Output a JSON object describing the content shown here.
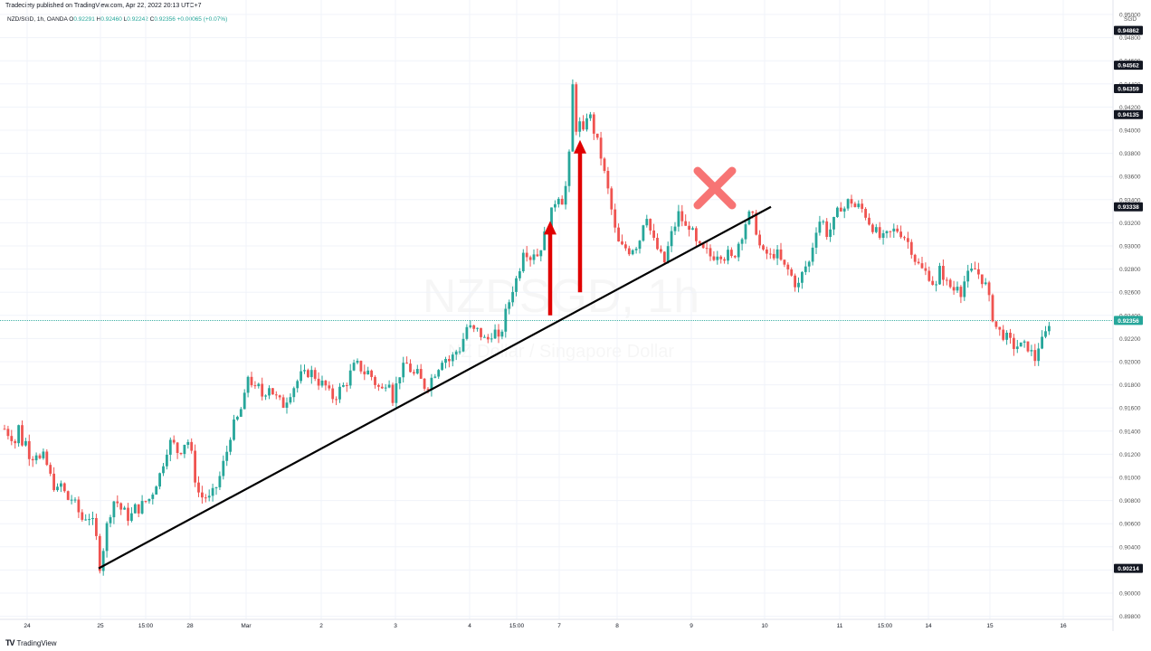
{
  "header": {
    "published": "Tradeciety published on TradingView.com, Apr 22, 2022 20:13 UTC+7",
    "symbol_line": "NZD/SGD, 1h, OANDA",
    "o_label": "O",
    "o_value": "0.92291",
    "h_label": "H",
    "h_value": "0.92460",
    "l_label": "L",
    "l_value": "0.92242",
    "c_label": "C",
    "c_value": "0.92356",
    "change": "+0.00065 (+0.07%)",
    "currency": "SGD"
  },
  "watermark": {
    "symbol": "NZDSGD, 1h",
    "name": "NZ Dollar / Singapore Dollar"
  },
  "footer": {
    "brand": "TradingView",
    "logo": "tradingview-logo-icon"
  },
  "colors": {
    "up": "#26a69a",
    "down": "#ef5350",
    "trendline": "#000000",
    "arrow": "#e00000",
    "cross": "#f77474",
    "price_line": "#26a69a"
  },
  "chart_data": {
    "type": "candlestick",
    "symbol": "NZD/SGD",
    "interval": "1h",
    "ylim": [
      0.898,
      0.95
    ],
    "y_ticks": [
      "0.95000",
      "0.94800",
      "0.94600",
      "0.94400",
      "0.94200",
      "0.94000",
      "0.93800",
      "0.93600",
      "0.93400",
      "0.93200",
      "0.93000",
      "0.92800",
      "0.92600",
      "0.92400",
      "0.92200",
      "0.92000",
      "0.91800",
      "0.91600",
      "0.91400",
      "0.91200",
      "0.91000",
      "0.90800",
      "0.90600",
      "0.90400",
      "0.90200",
      "0.90000",
      "0.89800"
    ],
    "x_ticks": [
      "24",
      "25",
      "15:00",
      "28",
      "Mar",
      "2",
      "3",
      "4",
      "15:00",
      "7",
      "8",
      "9",
      "10",
      "11",
      "15:00",
      "14",
      "15",
      "16"
    ],
    "price_labels": [
      {
        "value": "0.94862"
      },
      {
        "value": "0.94562"
      },
      {
        "value": "0.94359"
      },
      {
        "value": "0.94135"
      },
      {
        "value": "0.93338"
      },
      {
        "value": "0.90214"
      },
      {
        "value": "0.92356",
        "current": true
      }
    ],
    "close_path": [
      [
        0,
        0.9142
      ],
      [
        4,
        0.9138
      ],
      [
        8,
        0.9135
      ],
      [
        12,
        0.913
      ],
      [
        14,
        0.9148
      ],
      [
        17,
        0.914
      ],
      [
        20,
        0.9128
      ],
      [
        23,
        0.9132
      ],
      [
        27,
        0.912
      ],
      [
        31,
        0.9118
      ],
      [
        35,
        0.9122
      ],
      [
        39,
        0.9115
      ],
      [
        43,
        0.9118
      ],
      [
        47,
        0.911
      ],
      [
        51,
        0.91
      ],
      [
        55,
        0.9092
      ],
      [
        59,
        0.9088
      ],
      [
        63,
        0.9095
      ],
      [
        67,
        0.9085
      ],
      [
        71,
        0.908
      ],
      [
        75,
        0.9082
      ],
      [
        79,
        0.9075
      ],
      [
        83,
        0.9068
      ],
      [
        87,
        0.9062
      ],
      [
        91,
        0.9068
      ],
      [
        95,
        0.9065
      ],
      [
        99,
        0.9058
      ],
      [
        101,
        0.905
      ],
      [
        104,
        0.9028
      ],
      [
        106,
        0.9021
      ],
      [
        109,
        0.9038
      ],
      [
        113,
        0.9058
      ],
      [
        117,
        0.907
      ],
      [
        121,
        0.908
      ],
      [
        125,
        0.9078
      ],
      [
        129,
        0.9072
      ],
      [
        133,
        0.907
      ],
      [
        137,
        0.9065
      ],
      [
        141,
        0.9068
      ],
      [
        145,
        0.9075
      ],
      [
        149,
        0.9072
      ],
      [
        153,
        0.9078
      ],
      [
        157,
        0.908
      ],
      [
        161,
        0.9082
      ],
      [
        165,
        0.909
      ],
      [
        169,
        0.9098
      ],
      [
        173,
        0.9105
      ],
      [
        177,
        0.9118
      ],
      [
        181,
        0.9128
      ],
      [
        185,
        0.9132
      ],
      [
        189,
        0.9125
      ],
      [
        193,
        0.912
      ],
      [
        197,
        0.9128
      ],
      [
        201,
        0.9132
      ],
      [
        205,
        0.913
      ],
      [
        209,
        0.9105
      ],
      [
        213,
        0.909
      ],
      [
        217,
        0.9082
      ],
      [
        221,
        0.9085
      ],
      [
        225,
        0.908
      ],
      [
        229,
        0.9085
      ],
      [
        233,
        0.909
      ],
      [
        237,
        0.9098
      ],
      [
        241,
        0.911
      ],
      [
        245,
        0.912
      ],
      [
        249,
        0.9135
      ],
      [
        253,
        0.9145
      ],
      [
        257,
        0.915
      ],
      [
        261,
        0.9158
      ],
      [
        265,
        0.9168
      ],
      [
        269,
        0.9188
      ],
      [
        273,
        0.9182
      ],
      [
        277,
        0.9175
      ],
      [
        281,
        0.9178
      ],
      [
        285,
        0.917
      ],
      [
        289,
        0.9175
      ],
      [
        293,
        0.918
      ],
      [
        297,
        0.9172
      ],
      [
        301,
        0.9168
      ],
      [
        305,
        0.9165
      ],
      [
        309,
        0.9162
      ],
      [
        313,
        0.917
      ],
      [
        317,
        0.9175
      ],
      [
        321,
        0.918
      ],
      [
        325,
        0.9185
      ],
      [
        329,
        0.919
      ],
      [
        333,
        0.9188
      ],
      [
        337,
        0.9192
      ],
      [
        341,
        0.919
      ],
      [
        345,
        0.9185
      ],
      [
        349,
        0.918
      ],
      [
        353,
        0.9182
      ],
      [
        357,
        0.9175
      ],
      [
        361,
        0.917
      ],
      [
        365,
        0.9168
      ],
      [
        369,
        0.9175
      ],
      [
        373,
        0.9178
      ],
      [
        377,
        0.918
      ],
      [
        381,
        0.9188
      ],
      [
        385,
        0.9195
      ],
      [
        389,
        0.9198
      ],
      [
        393,
        0.9195
      ],
      [
        397,
        0.919
      ],
      [
        401,
        0.9192
      ],
      [
        405,
        0.9188
      ],
      [
        409,
        0.9182
      ],
      [
        413,
        0.9178
      ],
      [
        417,
        0.9175
      ],
      [
        421,
        0.9182
      ],
      [
        425,
        0.9185
      ],
      [
        429,
        0.9168
      ],
      [
        433,
        0.918
      ],
      [
        437,
        0.919
      ],
      [
        441,
        0.9195
      ],
      [
        445,
        0.9198
      ],
      [
        449,
        0.9192
      ],
      [
        453,
        0.9188
      ],
      [
        457,
        0.919
      ],
      [
        461,
        0.9182
      ],
      [
        465,
        0.9178
      ],
      [
        469,
        0.918
      ],
      [
        473,
        0.9188
      ],
      [
        477,
        0.9192
      ],
      [
        481,
        0.9198
      ],
      [
        485,
        0.9205
      ],
      [
        489,
        0.9202
      ],
      [
        493,
        0.92
      ],
      [
        497,
        0.9208
      ],
      [
        501,
        0.921
      ],
      [
        505,
        0.9212
      ],
      [
        509,
        0.9228
      ],
      [
        513,
        0.9232
      ],
      [
        517,
        0.9225
      ],
      [
        521,
        0.9228
      ],
      [
        525,
        0.9225
      ],
      [
        529,
        0.922
      ],
      [
        533,
        0.9218
      ],
      [
        537,
        0.9222
      ],
      [
        541,
        0.923
      ],
      [
        545,
        0.9215
      ],
      [
        549,
        0.9225
      ],
      [
        553,
        0.924
      ],
      [
        557,
        0.925
      ],
      [
        561,
        0.9262
      ],
      [
        565,
        0.927
      ],
      [
        569,
        0.928
      ],
      [
        573,
        0.9298
      ],
      [
        577,
        0.9295
      ],
      [
        581,
        0.929
      ],
      [
        585,
        0.9295
      ],
      [
        589,
        0.9292
      ],
      [
        593,
        0.93
      ],
      [
        597,
        0.931
      ],
      [
        601,
        0.932
      ],
      [
        605,
        0.933
      ],
      [
        609,
        0.934
      ],
      [
        613,
        0.9345
      ],
      [
        617,
        0.9338
      ],
      [
        621,
        0.9355
      ],
      [
        625,
        0.9385
      ],
      [
        628,
        0.944
      ],
      [
        631,
        0.94
      ],
      [
        635,
        0.941
      ],
      [
        638,
        0.939
      ],
      [
        641,
        0.9402
      ],
      [
        645,
        0.942
      ],
      [
        649,
        0.9405
      ],
      [
        653,
        0.9395
      ],
      [
        657,
        0.9385
      ],
      [
        661,
        0.937
      ],
      [
        665,
        0.9355
      ],
      [
        669,
        0.934
      ],
      [
        673,
        0.932
      ],
      [
        677,
        0.9305
      ],
      [
        681,
        0.9298
      ],
      [
        685,
        0.93
      ],
      [
        689,
        0.9295
      ],
      [
        693,
        0.9298
      ],
      [
        697,
        0.93
      ],
      [
        701,
        0.9302
      ],
      [
        705,
        0.9318
      ],
      [
        709,
        0.933
      ],
      [
        713,
        0.9315
      ],
      [
        717,
        0.9305
      ],
      [
        721,
        0.9298
      ],
      [
        725,
        0.9292
      ],
      [
        729,
        0.9285
      ],
      [
        733,
        0.9298
      ],
      [
        737,
        0.931
      ],
      [
        741,
        0.9318
      ],
      [
        745,
        0.9328
      ],
      [
        749,
        0.9322
      ],
      [
        753,
        0.9315
      ],
      [
        757,
        0.9318
      ],
      [
        761,
        0.931
      ],
      [
        765,
        0.93
      ],
      [
        769,
        0.9298
      ],
      [
        773,
        0.9295
      ],
      [
        777,
        0.9295
      ],
      [
        781,
        0.929
      ],
      [
        785,
        0.9292
      ],
      [
        789,
        0.9295
      ],
      [
        793,
        0.9292
      ],
      [
        797,
        0.929
      ],
      [
        801,
        0.9295
      ],
      [
        805,
        0.9285
      ],
      [
        809,
        0.93
      ],
      [
        813,
        0.9305
      ],
      [
        817,
        0.9315
      ],
      [
        821,
        0.9325
      ],
      [
        825,
        0.9328
      ],
      [
        829,
        0.932
      ],
      [
        833,
        0.9305
      ],
      [
        837,
        0.9292
      ],
      [
        841,
        0.9295
      ],
      [
        845,
        0.929
      ],
      [
        849,
        0.9292
      ],
      [
        853,
        0.9295
      ],
      [
        857,
        0.9288
      ],
      [
        861,
        0.9282
      ],
      [
        865,
        0.928
      ],
      [
        869,
        0.9275
      ],
      [
        873,
        0.9268
      ],
      [
        877,
        0.9265
      ],
      [
        881,
        0.9275
      ],
      [
        885,
        0.9282
      ],
      [
        889,
        0.9285
      ],
      [
        893,
        0.93
      ],
      [
        897,
        0.9315
      ],
      [
        901,
        0.9322
      ],
      [
        905,
        0.932
      ],
      [
        909,
        0.931
      ],
      [
        913,
        0.9315
      ],
      [
        917,
        0.9322
      ],
      [
        921,
        0.933
      ],
      [
        925,
        0.9335
      ],
      [
        929,
        0.9332
      ],
      [
        933,
        0.934
      ],
      [
        937,
        0.9338
      ],
      [
        941,
        0.9332
      ],
      [
        945,
        0.9335
      ],
      [
        949,
        0.933
      ],
      [
        953,
        0.9325
      ],
      [
        957,
        0.9318
      ],
      [
        961,
        0.9315
      ],
      [
        965,
        0.931
      ],
      [
        969,
        0.9305
      ],
      [
        973,
        0.9308
      ],
      [
        977,
        0.931
      ],
      [
        981,
        0.9312
      ],
      [
        985,
        0.9315
      ],
      [
        989,
        0.9312
      ],
      [
        993,
        0.931
      ],
      [
        997,
        0.9305
      ],
      [
        1001,
        0.93
      ],
      [
        1005,
        0.929
      ],
      [
        1009,
        0.9285
      ],
      [
        1013,
        0.928
      ],
      [
        1017,
        0.9278
      ],
      [
        1021,
        0.9275
      ],
      [
        1025,
        0.927
      ],
      [
        1029,
        0.9262
      ],
      [
        1033,
        0.928
      ],
      [
        1037,
        0.9275
      ],
      [
        1041,
        0.9268
      ],
      [
        1045,
        0.9265
      ],
      [
        1049,
        0.9262
      ],
      [
        1053,
        0.9268
      ],
      [
        1057,
        0.926
      ],
      [
        1061,
        0.927
      ],
      [
        1065,
        0.9275
      ],
      [
        1069,
        0.9278
      ],
      [
        1073,
        0.928
      ],
      [
        1077,
        0.9275
      ],
      [
        1081,
        0.927
      ],
      [
        1085,
        0.9265
      ],
      [
        1089,
        0.925
      ],
      [
        1093,
        0.9235
      ],
      [
        1097,
        0.9228
      ],
      [
        1101,
        0.9225
      ],
      [
        1105,
        0.9222
      ],
      [
        1109,
        0.922
      ],
      [
        1113,
        0.9215
      ],
      [
        1117,
        0.9212
      ],
      [
        1121,
        0.9215
      ],
      [
        1125,
        0.9212
      ],
      [
        1129,
        0.9215
      ],
      [
        1133,
        0.921
      ],
      [
        1137,
        0.9205
      ],
      [
        1140,
        0.92
      ],
      [
        1143,
        0.9215
      ],
      [
        1147,
        0.9218
      ],
      [
        1151,
        0.9225
      ],
      [
        1155,
        0.92356
      ]
    ],
    "overlays": [
      {
        "type": "trendline",
        "x1_rel": 104,
        "y1": 0.90214,
        "x2_rel": 852,
        "y2": 0.93338
      },
      {
        "type": "up-arrow",
        "x_rel": 608,
        "from": 0.924,
        "to": 0.932
      },
      {
        "type": "up-arrow",
        "x_rel": 641,
        "from": 0.926,
        "to": 0.939
      },
      {
        "type": "cross",
        "x_rel": 790,
        "y": 0.935
      }
    ]
  }
}
